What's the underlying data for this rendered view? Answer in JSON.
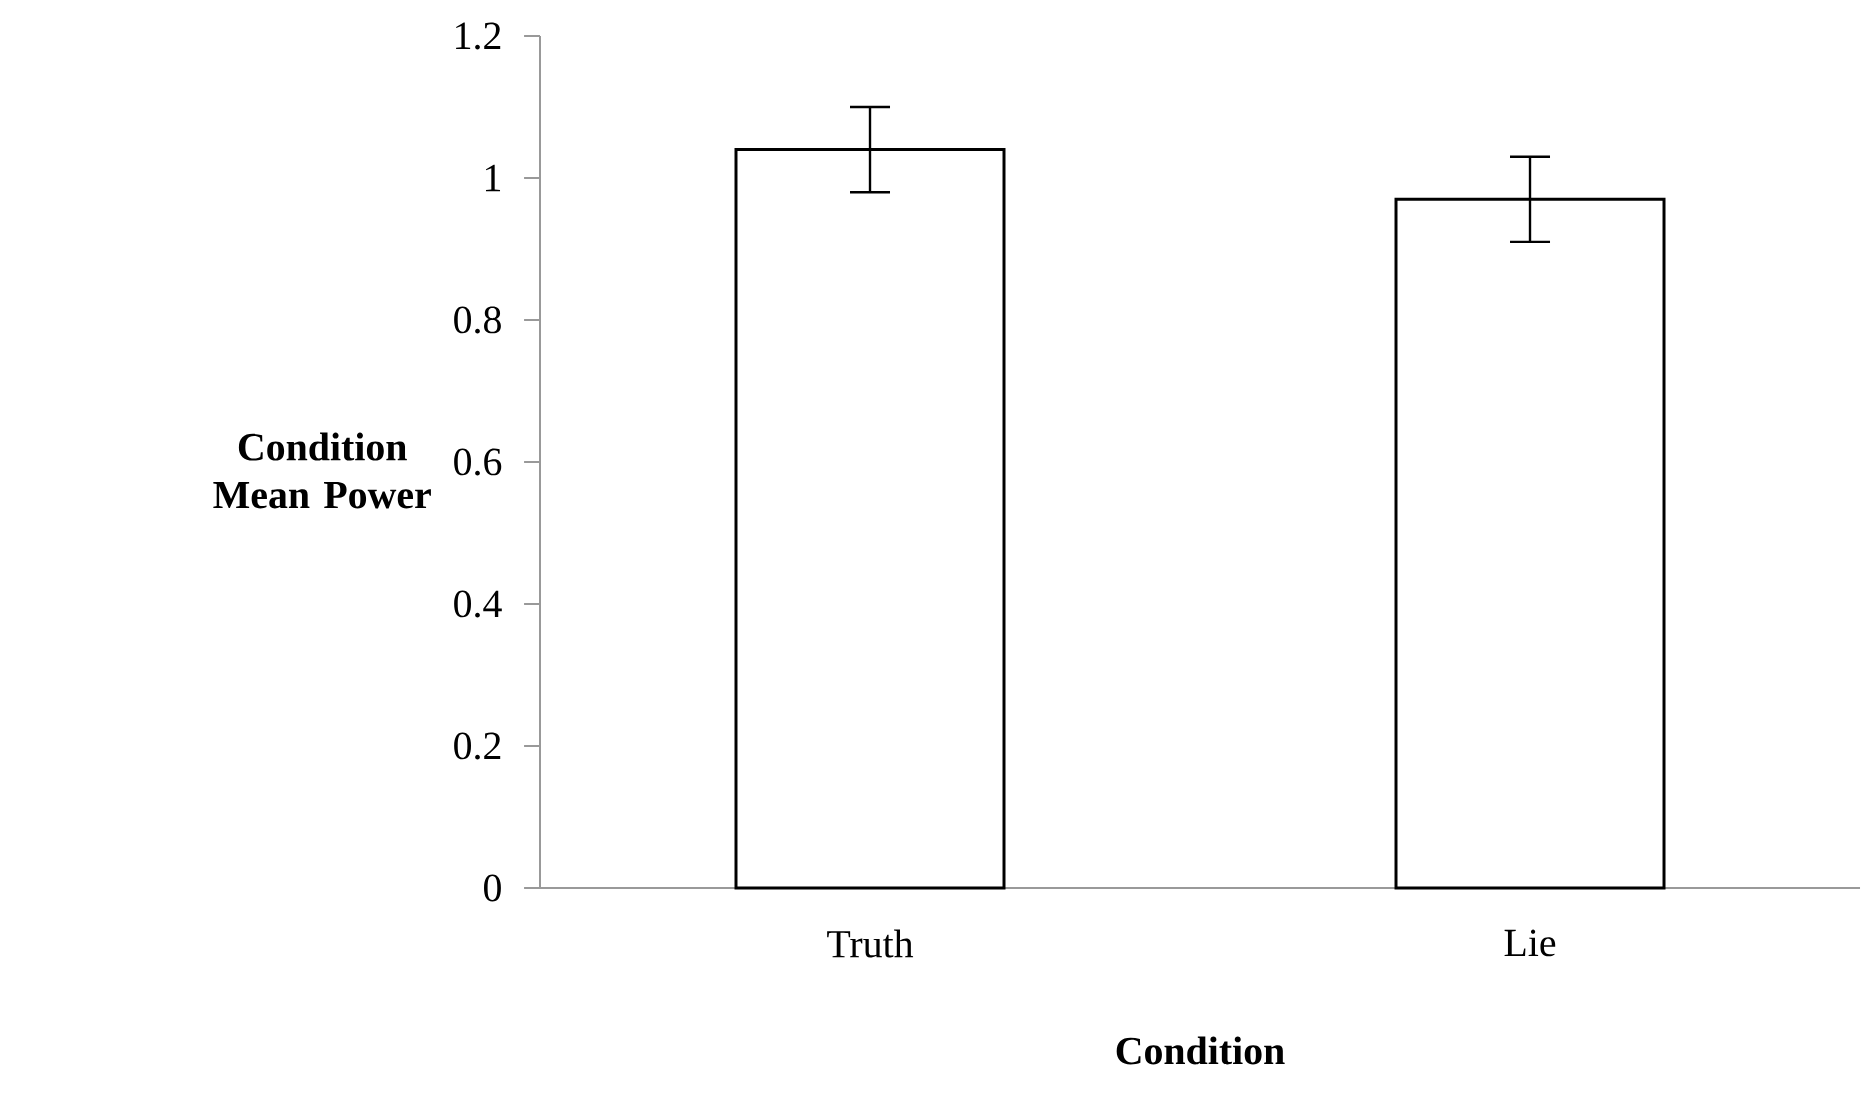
{
  "chart_data": {
    "type": "bar",
    "xlabel": "Condition",
    "ylabel": "Condition Mean Power",
    "categories": [
      "Truth",
      "Lie"
    ],
    "values": [
      1.04,
      0.97
    ],
    "errors": [
      0.06,
      0.06
    ],
    "color": "#ffffff",
    "ylim": [
      0,
      1.2
    ],
    "yticks": [
      0,
      0.2,
      0.4,
      0.6,
      0.8,
      1,
      1.2
    ],
    "grid": false
  }
}
